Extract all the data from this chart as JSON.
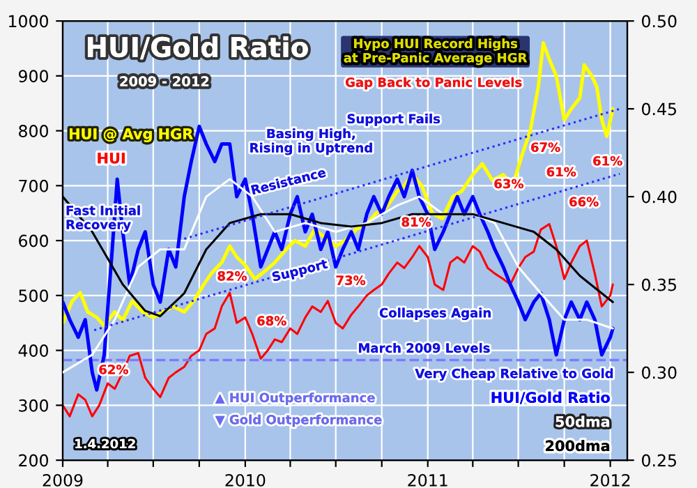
{
  "chart_data": {
    "type": "line",
    "title": "HUI/Gold Ratio",
    "subtitle": "2009 - 2012",
    "xlim": [
      "2009-01-01",
      "2012-02-04"
    ],
    "xticks": [
      {
        "value": "2009-01-01",
        "label": "2009"
      },
      {
        "value": "2009-04-01",
        "label": null
      },
      {
        "value": "2009-07-01",
        "label": null
      },
      {
        "value": "2009-10-01",
        "label": null
      },
      {
        "value": "2010-01-01",
        "label": "2010"
      },
      {
        "value": "2010-04-01",
        "label": null
      },
      {
        "value": "2010-07-01",
        "label": null
      },
      {
        "value": "2010-10-01",
        "label": null
      },
      {
        "value": "2011-01-01",
        "label": "2011"
      },
      {
        "value": "2011-04-01",
        "label": null
      },
      {
        "value": "2011-07-01",
        "label": null
      },
      {
        "value": "2011-10-01",
        "label": null
      },
      {
        "value": "2012-01-01",
        "label": "2012"
      }
    ],
    "ylim": [
      200,
      1000
    ],
    "yticks": [
      200,
      300,
      400,
      500,
      600,
      700,
      800,
      900,
      1000
    ],
    "y2lim": [
      0.25,
      0.5
    ],
    "y2ticks": [
      {
        "value": 0.25,
        "label": "0.25"
      },
      {
        "value": 0.3,
        "label": "0.30"
      },
      {
        "value": 0.35,
        "label": "0.35"
      },
      {
        "value": 0.4,
        "label": "0.40"
      },
      {
        "value": 0.45,
        "label": "0.45"
      },
      {
        "value": 0.5,
        "label": "0.50"
      }
    ],
    "grid": true,
    "legend": false,
    "series": [
      {
        "name": "HUI @ Avg HGR",
        "color": "#ffff00",
        "x": [
          "2009-01-01",
          "2009-01-20",
          "2009-02-05",
          "2009-02-20",
          "2009-03-10",
          "2009-03-25",
          "2009-04-15",
          "2009-05-01",
          "2009-05-20",
          "2009-06-10",
          "2009-07-01",
          "2009-07-20",
          "2009-08-10",
          "2009-09-01",
          "2009-09-20",
          "2009-10-10",
          "2009-10-25",
          "2009-11-15",
          "2009-12-01",
          "2009-12-15",
          "2010-01-01",
          "2010-01-20",
          "2010-02-10",
          "2010-03-01",
          "2010-03-20",
          "2010-04-10",
          "2010-05-01",
          "2010-05-20",
          "2010-06-10",
          "2010-07-01",
          "2010-07-20",
          "2010-08-10",
          "2010-09-01",
          "2010-09-20",
          "2010-10-10",
          "2010-11-01",
          "2010-11-15",
          "2010-12-01",
          "2010-12-20",
          "2011-01-10",
          "2011-01-30",
          "2011-02-20",
          "2011-03-10",
          "2011-04-01",
          "2011-04-20",
          "2011-05-10",
          "2011-06-01",
          "2011-06-20",
          "2011-07-10",
          "2011-07-25",
          "2011-08-10",
          "2011-08-20",
          "2011-09-01",
          "2011-09-15",
          "2011-10-01",
          "2011-10-15",
          "2011-11-01",
          "2011-11-10",
          "2011-11-25",
          "2011-12-05",
          "2011-12-15",
          "2011-12-25",
          "2012-01-06"
        ],
        "values": [
          450,
          490,
          505,
          470,
          460,
          445,
          470,
          455,
          490,
          470,
          460,
          470,
          480,
          470,
          490,
          520,
          540,
          560,
          590,
          570,
          555,
          530,
          545,
          560,
          580,
          600,
          590,
          620,
          605,
          590,
          600,
          620,
          630,
          650,
          660,
          690,
          700,
          720,
          700,
          650,
          640,
          680,
          690,
          720,
          740,
          710,
          720,
          700,
          760,
          800,
          880,
          960,
          930,
          900,
          820,
          840,
          860,
          920,
          900,
          880,
          820,
          790,
          840
        ]
      },
      {
        "name": "HUI",
        "color": "#ff0000",
        "x": [
          "2009-01-01",
          "2009-01-15",
          "2009-02-01",
          "2009-02-15",
          "2009-03-01",
          "2009-03-15",
          "2009-04-01",
          "2009-04-15",
          "2009-05-01",
          "2009-05-15",
          "2009-06-01",
          "2009-06-15",
          "2009-07-01",
          "2009-07-15",
          "2009-08-01",
          "2009-08-15",
          "2009-09-01",
          "2009-09-15",
          "2009-10-01",
          "2009-10-15",
          "2009-11-01",
          "2009-11-15",
          "2009-12-01",
          "2009-12-15",
          "2010-01-01",
          "2010-01-15",
          "2010-02-01",
          "2010-02-15",
          "2010-03-01",
          "2010-03-15",
          "2010-04-01",
          "2010-04-15",
          "2010-05-01",
          "2010-05-15",
          "2010-06-01",
          "2010-06-15",
          "2010-07-01",
          "2010-07-15",
          "2010-08-01",
          "2010-08-15",
          "2010-09-01",
          "2010-09-15",
          "2010-10-01",
          "2010-10-15",
          "2010-11-01",
          "2010-11-15",
          "2010-12-01",
          "2010-12-15",
          "2011-01-01",
          "2011-01-15",
          "2011-02-01",
          "2011-02-15",
          "2011-03-01",
          "2011-03-15",
          "2011-04-01",
          "2011-04-15",
          "2011-05-01",
          "2011-05-15",
          "2011-06-01",
          "2011-06-15",
          "2011-07-01",
          "2011-07-15",
          "2011-08-01",
          "2011-08-15",
          "2011-09-01",
          "2011-09-15",
          "2011-10-01",
          "2011-10-15",
          "2011-11-01",
          "2011-11-15",
          "2011-12-01",
          "2011-12-15",
          "2012-01-01",
          "2012-01-06"
        ],
        "values": [
          300,
          280,
          320,
          310,
          280,
          300,
          340,
          330,
          360,
          390,
          395,
          350,
          330,
          315,
          350,
          360,
          370,
          390,
          400,
          430,
          440,
          480,
          505,
          450,
          460,
          430,
          385,
          400,
          420,
          415,
          440,
          430,
          460,
          480,
          470,
          490,
          450,
          440,
          465,
          480,
          500,
          510,
          520,
          540,
          560,
          550,
          570,
          590,
          570,
          520,
          510,
          560,
          570,
          560,
          590,
          580,
          550,
          540,
          530,
          520,
          550,
          570,
          580,
          620,
          630,
          590,
          530,
          560,
          590,
          600,
          540,
          480,
          500,
          520
        ]
      },
      {
        "name": "HUI/Gold Ratio",
        "color": "#0000ff",
        "axis": "y2",
        "x": [
          "2009-01-01",
          "2009-01-15",
          "2009-02-01",
          "2009-02-15",
          "2009-03-01",
          "2009-03-10",
          "2009-03-25",
          "2009-04-10",
          "2009-04-20",
          "2009-05-01",
          "2009-05-15",
          "2009-06-01",
          "2009-06-15",
          "2009-07-01",
          "2009-07-15",
          "2009-08-01",
          "2009-08-15",
          "2009-09-01",
          "2009-09-15",
          "2009-10-01",
          "2009-10-15",
          "2009-11-01",
          "2009-11-15",
          "2009-12-01",
          "2009-12-15",
          "2010-01-01",
          "2010-01-15",
          "2010-02-01",
          "2010-02-15",
          "2010-03-01",
          "2010-03-15",
          "2010-04-01",
          "2010-04-15",
          "2010-05-01",
          "2010-05-15",
          "2010-06-01",
          "2010-06-15",
          "2010-07-01",
          "2010-07-15",
          "2010-08-01",
          "2010-08-15",
          "2010-09-01",
          "2010-09-15",
          "2010-10-01",
          "2010-10-15",
          "2010-11-01",
          "2010-11-15",
          "2010-12-01",
          "2010-12-15",
          "2011-01-01",
          "2011-01-15",
          "2011-02-01",
          "2011-02-15",
          "2011-03-01",
          "2011-03-15",
          "2011-04-01",
          "2011-04-15",
          "2011-05-01",
          "2011-05-15",
          "2011-06-01",
          "2011-06-15",
          "2011-07-01",
          "2011-07-15",
          "2011-08-01",
          "2011-08-15",
          "2011-09-01",
          "2011-09-15",
          "2011-10-01",
          "2011-10-15",
          "2011-11-01",
          "2011-11-15",
          "2011-12-01",
          "2011-12-15",
          "2012-01-01",
          "2012-01-06"
        ],
        "values": [
          0.34,
          0.33,
          0.32,
          0.33,
          0.3,
          0.29,
          0.31,
          0.37,
          0.41,
          0.38,
          0.35,
          0.37,
          0.38,
          0.35,
          0.34,
          0.37,
          0.36,
          0.4,
          0.42,
          0.44,
          0.43,
          0.42,
          0.43,
          0.43,
          0.4,
          0.41,
          0.39,
          0.36,
          0.37,
          0.38,
          0.37,
          0.39,
          0.4,
          0.38,
          0.39,
          0.37,
          0.38,
          0.36,
          0.37,
          0.38,
          0.37,
          0.39,
          0.4,
          0.39,
          0.4,
          0.41,
          0.4,
          0.415,
          0.4,
          0.39,
          0.37,
          0.38,
          0.39,
          0.4,
          0.39,
          0.4,
          0.39,
          0.38,
          0.37,
          0.36,
          0.35,
          0.34,
          0.33,
          0.34,
          0.345,
          0.33,
          0.31,
          0.33,
          0.34,
          0.33,
          0.34,
          0.33,
          0.31,
          0.32,
          0.325
        ]
      },
      {
        "name": "50dma",
        "color": "#ffffff",
        "axis": "y2",
        "x": [
          "2009-01-01",
          "2009-03-01",
          "2009-04-15",
          "2009-06-01",
          "2009-07-15",
          "2009-09-01",
          "2009-10-15",
          "2009-12-01",
          "2010-01-15",
          "2010-03-01",
          "2010-05-01",
          "2010-07-01",
          "2010-09-01",
          "2010-11-01",
          "2010-12-15",
          "2011-02-01",
          "2011-04-01",
          "2011-05-15",
          "2011-07-01",
          "2011-08-15",
          "2011-10-01",
          "2011-11-15",
          "2012-01-06"
        ],
        "values": [
          0.3,
          0.31,
          0.33,
          0.36,
          0.37,
          0.37,
          0.4,
          0.41,
          0.4,
          0.38,
          0.385,
          0.38,
          0.385,
          0.395,
          0.4,
          0.39,
          0.39,
          0.385,
          0.36,
          0.345,
          0.33,
          0.33,
          0.325
        ]
      },
      {
        "name": "200dma",
        "color": "#000000",
        "axis": "y2",
        "x": [
          "2009-01-01",
          "2009-03-01",
          "2009-05-01",
          "2009-06-15",
          "2009-07-15",
          "2009-09-01",
          "2009-10-15",
          "2009-12-01",
          "2010-02-01",
          "2010-04-01",
          "2010-06-01",
          "2010-08-01",
          "2010-10-01",
          "2010-12-01",
          "2011-02-01",
          "2011-04-01",
          "2011-06-01",
          "2011-08-01",
          "2011-09-15",
          "2011-11-01",
          "2011-12-15",
          "2012-01-06"
        ],
        "values": [
          0.4,
          0.38,
          0.35,
          0.335,
          0.332,
          0.345,
          0.37,
          0.385,
          0.39,
          0.39,
          0.385,
          0.383,
          0.385,
          0.39,
          0.39,
          0.39,
          0.385,
          0.38,
          0.37,
          0.355,
          0.345,
          0.34
        ]
      },
      {
        "color": "#2a2aff",
        "axis": "y2",
        "line_style": "dotted",
        "x": [
          "2009-09-01",
          "2012-01-20"
        ],
        "values": [
          0.376,
          0.45
        ]
      },
      {
        "color": "#2a2aff",
        "axis": "y2",
        "line_style": "dotted",
        "x": [
          "2009-03-05",
          "2012-01-20"
        ],
        "values": [
          0.324,
          0.413
        ]
      }
    ],
    "ref_lines": [
      {
        "axis": "y2",
        "value": 0.307,
        "color": "#7b7bff",
        "line_style": "dashed"
      }
    ],
    "annotations": [
      "Hypo HUI Record Highs\nat Pre-Panic Average HGR",
      "Gap Back to Panic Levels",
      "Support Fails",
      "Basing High,\nRising in Uptrend",
      "Resistance",
      "Fast Initial\nRecovery",
      "Support",
      "Collapses Again",
      "March 2009 Levels",
      "Very Cheap Relative to Gold",
      "62%",
      "82%",
      "68%",
      "73%",
      "81%",
      "63%",
      "67%",
      "61%",
      "66%",
      "61%",
      "▲ HUI Outperformance",
      "▼ Gold Outperformance",
      "1.4.2012"
    ]
  }
}
